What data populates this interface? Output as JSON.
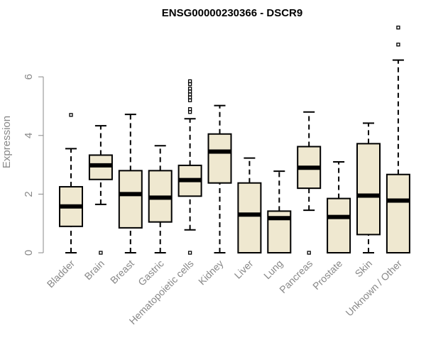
{
  "chart_data": {
    "type": "boxplot",
    "title": "ENSG00000230366 - DSCR9",
    "ylabel": "Expression",
    "xlabel": "",
    "ylim": [
      0,
      8
    ],
    "yticks": [
      0,
      2,
      4,
      6
    ],
    "grid": false,
    "colors": {
      "box_fill": "#efe8d0",
      "stroke": "#000000",
      "axis_text": "#888888"
    },
    "categories": [
      "Bladder",
      "Brain",
      "Breast",
      "Gastric",
      "Hematopoietic cells",
      "Kidney",
      "Liver",
      "Lung",
      "Pancreas",
      "Prostate",
      "Skin",
      "Unknown / Other"
    ],
    "boxes": [
      {
        "whisker_low": 0,
        "q1": 0.9,
        "median": 1.58,
        "q3": 2.25,
        "whisker_high": 3.55,
        "outliers": [
          4.7
        ]
      },
      {
        "whisker_low": 1.65,
        "q1": 2.5,
        "median": 2.98,
        "q3": 3.33,
        "whisker_high": 4.33,
        "outliers": [
          0
        ]
      },
      {
        "whisker_low": 0,
        "q1": 0.85,
        "median": 2.0,
        "q3": 2.8,
        "whisker_high": 4.72,
        "outliers": []
      },
      {
        "whisker_low": 0,
        "q1": 1.05,
        "median": 1.88,
        "q3": 2.8,
        "whisker_high": 3.65,
        "outliers": []
      },
      {
        "whisker_low": 0.78,
        "q1": 1.93,
        "median": 2.48,
        "q3": 2.98,
        "whisker_high": 4.57,
        "outliers": [
          0,
          4.8,
          4.9,
          5.2,
          5.3,
          5.4,
          5.5,
          5.6,
          5.75,
          5.85
        ]
      },
      {
        "whisker_low": 0,
        "q1": 2.38,
        "median": 3.45,
        "q3": 4.05,
        "whisker_high": 5.02,
        "outliers": []
      },
      {
        "whisker_low": 0,
        "q1": 0,
        "median": 1.3,
        "q3": 2.38,
        "whisker_high": 3.23,
        "outliers": []
      },
      {
        "whisker_low": 0,
        "q1": 0,
        "median": 1.18,
        "q3": 1.42,
        "whisker_high": 2.78,
        "outliers": []
      },
      {
        "whisker_low": 1.45,
        "q1": 2.2,
        "median": 2.9,
        "q3": 3.62,
        "whisker_high": 4.8,
        "outliers": [
          0
        ]
      },
      {
        "whisker_low": 0,
        "q1": 0,
        "median": 1.22,
        "q3": 1.85,
        "whisker_high": 3.1,
        "outliers": []
      },
      {
        "whisker_low": 0,
        "q1": 0.62,
        "median": 1.95,
        "q3": 3.72,
        "whisker_high": 4.42,
        "outliers": []
      },
      {
        "whisker_low": 0,
        "q1": 0,
        "median": 1.78,
        "q3": 2.67,
        "whisker_high": 6.57,
        "outliers": [
          7.1,
          7.68
        ]
      }
    ]
  }
}
